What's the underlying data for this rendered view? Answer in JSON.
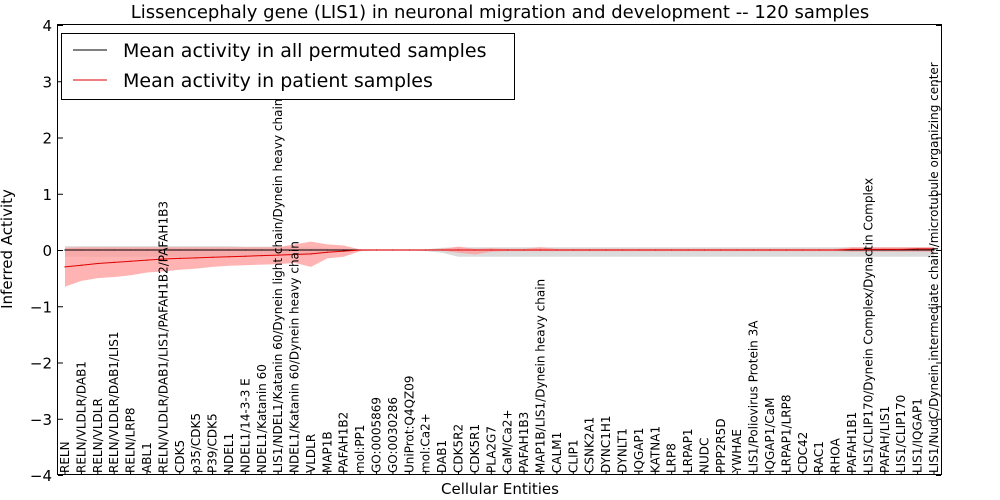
{
  "chart_data": {
    "type": "line",
    "title": "Lissencephaly gene (LIS1) in neuronal migration and development -- 120 samples",
    "xlabel": "Cellular Entities",
    "ylabel": "Inferred Activity",
    "ylim": [
      -4,
      4
    ],
    "yticks": [
      -4,
      -3,
      -2,
      -1,
      0,
      1,
      2,
      3,
      4
    ],
    "ytick_labels": [
      "−4",
      "−3",
      "−2",
      "−1",
      "0",
      "1",
      "2",
      "3",
      "4"
    ],
    "legend_position": "top-left",
    "categories": [
      "RELN",
      "RELN/VLDLR/DAB1",
      "RELN/VLDLR",
      "RELN/VLDLR/DAB1/LIS1",
      "RELN/LRP8",
      "ABL1",
      "RELN/VLDLR/DAB1/LIS1/PAFAH1B2/PAFAH1B3",
      "CDK5",
      "p35/CDK5",
      "P39/CDK5",
      "NDEL1",
      "NDEL1/14-3-3 E",
      "NDEL1/Katanin 60",
      "LIS1/NDEL1/Katanin 60/Dynein light chain/Dynein heavy chain",
      "NDEL1/Katanin 60/Dynein heavy chain",
      "VLDLR",
      "MAP1B",
      "PAFAH1B2",
      "mol:PP1",
      "GO:0005869",
      "GO:0030286",
      "UniProt:Q4QZ09",
      "mol:Ca2+",
      "DAB1",
      "CDK5R2",
      "CDK5R1",
      "PLA2G7",
      "CaM/Ca2+",
      "PAFAH1B3",
      "MAP1B/LIS1/Dynein heavy chain",
      "CALM1",
      "CLIP1",
      "CSNK2A1",
      "DYNC1H1",
      "DYNLT1",
      "IQGAP1",
      "KATNA1",
      "LRP8",
      "LRPAP1",
      "NUDC",
      "PPP2R5D",
      "YWHAE",
      "LIS1/Poliovirus Protein 3A",
      "IQGAP1/CaM",
      "LRPAP1/LRP8",
      "CDC42",
      "RAC1",
      "RHOA",
      "PAFAH1B1",
      "LIS1/CLIP170/Dynein Complex/Dynactin Complex",
      "PAFAH/LIS1",
      "LIS1/CLIP170",
      "LIS1/IQGAP1",
      "LIS1/NudC/Dynein intermediate chain/microtubule organizing center"
    ],
    "series": [
      {
        "name": "Mean activity in all permuted samples",
        "color": "#000000",
        "band_color": "#b0b0b0",
        "values": [
          0.0,
          0.0,
          0.0,
          0.0,
          0.0,
          0.0,
          0.0,
          0.0,
          0.0,
          0.0,
          0.0,
          0.0,
          0.0,
          0.0,
          0.0,
          0.0,
          0.0,
          0.0,
          0.0,
          0.0,
          0.0,
          0.0,
          0.0,
          0.0,
          0.0,
          0.0,
          0.0,
          0.0,
          0.0,
          0.0,
          0.0,
          0.0,
          0.0,
          0.0,
          0.0,
          0.0,
          0.0,
          0.0,
          0.0,
          0.0,
          0.0,
          0.0,
          0.0,
          0.0,
          0.0,
          0.0,
          0.0,
          0.0,
          0.0,
          0.0,
          0.0,
          0.0,
          0.0,
          0.0
        ],
        "upper": [
          0.07,
          0.07,
          0.07,
          0.07,
          0.07,
          0.07,
          0.07,
          0.07,
          0.07,
          0.07,
          0.07,
          0.06,
          0.06,
          0.06,
          0.05,
          0.05,
          0.03,
          0.02,
          0.01,
          0.01,
          0.01,
          0.01,
          0.01,
          0.04,
          0.05,
          0.05,
          0.05,
          0.05,
          0.05,
          0.05,
          0.05,
          0.05,
          0.05,
          0.05,
          0.05,
          0.05,
          0.05,
          0.05,
          0.05,
          0.05,
          0.05,
          0.05,
          0.05,
          0.05,
          0.05,
          0.05,
          0.05,
          0.05,
          0.05,
          0.05,
          0.05,
          0.05,
          0.05,
          0.05
        ],
        "lower": [
          -0.12,
          -0.12,
          -0.12,
          -0.12,
          -0.12,
          -0.12,
          -0.12,
          -0.12,
          -0.12,
          -0.12,
          -0.11,
          -0.11,
          -0.11,
          -0.1,
          -0.1,
          -0.1,
          -0.05,
          -0.03,
          -0.01,
          -0.01,
          -0.01,
          -0.01,
          -0.02,
          -0.05,
          -0.12,
          -0.12,
          -0.12,
          -0.12,
          -0.12,
          -0.12,
          -0.12,
          -0.12,
          -0.12,
          -0.12,
          -0.12,
          -0.12,
          -0.12,
          -0.12,
          -0.12,
          -0.12,
          -0.12,
          -0.12,
          -0.12,
          -0.12,
          -0.12,
          -0.12,
          -0.12,
          -0.12,
          -0.12,
          -0.12,
          -0.12,
          -0.12,
          -0.12,
          -0.12
        ]
      },
      {
        "name": "Mean activity in patient samples",
        "color": "#e00000",
        "band_color": "#ff9a9a",
        "values": [
          -0.3,
          -0.27,
          -0.24,
          -0.22,
          -0.2,
          -0.18,
          -0.16,
          -0.15,
          -0.14,
          -0.13,
          -0.12,
          -0.11,
          -0.1,
          -0.09,
          -0.08,
          -0.07,
          -0.04,
          -0.02,
          0.0,
          0.0,
          0.0,
          0.0,
          0.0,
          0.0,
          0.0,
          0.0,
          0.0,
          0.0,
          0.0,
          0.0,
          0.0,
          0.0,
          0.0,
          0.0,
          0.0,
          0.0,
          0.0,
          0.0,
          0.0,
          0.0,
          0.0,
          0.0,
          0.0,
          0.0,
          0.0,
          0.0,
          0.0,
          0.0,
          0.01,
          0.01,
          0.01,
          0.01,
          0.02,
          0.02
        ],
        "upper": [
          0.04,
          0.05,
          0.05,
          0.05,
          0.05,
          0.05,
          0.05,
          0.05,
          0.05,
          0.05,
          0.05,
          0.05,
          0.05,
          0.05,
          0.1,
          0.15,
          0.1,
          0.08,
          0.01,
          0.01,
          0.01,
          0.01,
          0.01,
          0.02,
          0.06,
          0.02,
          0.03,
          0.02,
          0.02,
          0.05,
          0.02,
          0.02,
          0.02,
          0.02,
          0.02,
          0.02,
          0.02,
          0.02,
          0.02,
          0.02,
          0.02,
          0.02,
          0.02,
          0.02,
          0.02,
          0.02,
          0.02,
          0.02,
          0.05,
          0.05,
          0.05,
          0.05,
          0.05,
          0.05
        ],
        "lower": [
          -0.65,
          -0.55,
          -0.5,
          -0.48,
          -0.45,
          -0.4,
          -0.38,
          -0.35,
          -0.33,
          -0.3,
          -0.28,
          -0.27,
          -0.26,
          -0.25,
          -0.23,
          -0.3,
          -0.15,
          -0.12,
          -0.02,
          -0.01,
          -0.01,
          -0.01,
          -0.01,
          -0.01,
          -0.05,
          -0.08,
          -0.03,
          -0.02,
          -0.02,
          -0.02,
          -0.02,
          -0.02,
          -0.02,
          -0.02,
          -0.02,
          -0.02,
          -0.02,
          -0.02,
          -0.02,
          -0.02,
          -0.02,
          -0.02,
          -0.02,
          -0.02,
          -0.02,
          -0.02,
          -0.02,
          -0.02,
          -0.03,
          -0.03,
          -0.03,
          -0.03,
          -0.03,
          -0.03
        ]
      }
    ]
  }
}
